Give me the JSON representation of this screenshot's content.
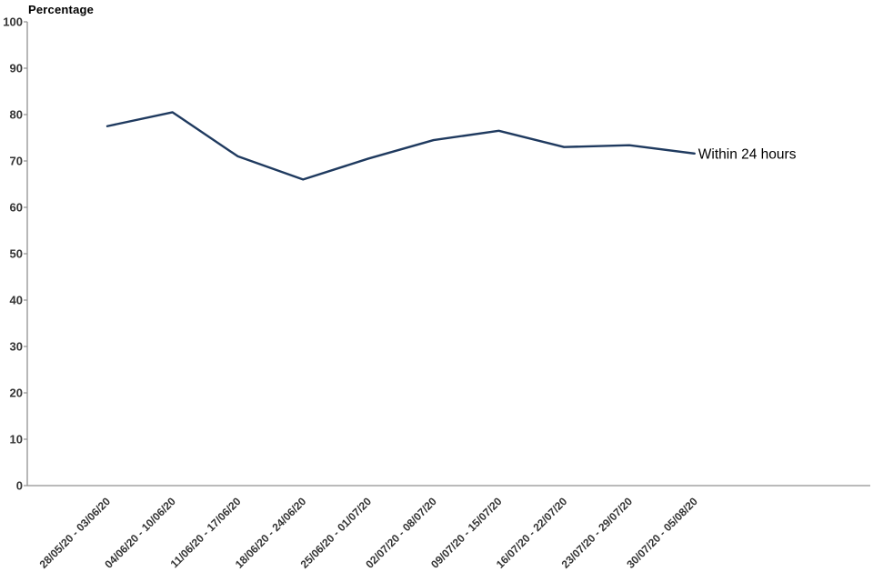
{
  "page": {
    "background_color": "#ffffff"
  },
  "chart_data": {
    "type": "line",
    "title": "",
    "y_axis_title": "Percentage",
    "xlabel": "",
    "ylabel": "Percentage",
    "ylim": [
      0,
      100
    ],
    "y_tick_step": 10,
    "grid": false,
    "legend_position": "inline-end-of-line",
    "axis_color": "#919191",
    "tick_label_color": "#333333",
    "categories": [
      "28/05/20 - 03/06/20",
      "04/06/20 - 10/06/20",
      "11/06/20 - 17/06/20",
      "18/06/20 - 24/06/20",
      "25/06/20 - 01/07/20",
      "02/07/20 - 08/07/20",
      "09/07/20 - 15/07/20",
      "16/07/20 - 22/07/20",
      "23/07/20 - 29/07/20",
      "30/07/20 - 05/08/20"
    ],
    "series": [
      {
        "name": "Within 24 hours",
        "color": "#1f3a5f",
        "label_color": "#000000",
        "values": [
          77.5,
          80.5,
          71,
          66,
          70.5,
          74.5,
          76.5,
          73,
          73.4,
          71.6
        ]
      }
    ]
  }
}
